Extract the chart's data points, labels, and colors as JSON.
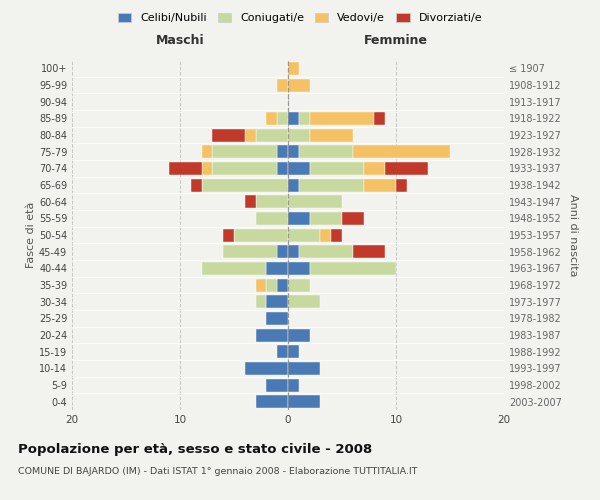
{
  "age_groups": [
    "0-4",
    "5-9",
    "10-14",
    "15-19",
    "20-24",
    "25-29",
    "30-34",
    "35-39",
    "40-44",
    "45-49",
    "50-54",
    "55-59",
    "60-64",
    "65-69",
    "70-74",
    "75-79",
    "80-84",
    "85-89",
    "90-94",
    "95-99",
    "100+"
  ],
  "birth_years": [
    "2003-2007",
    "1998-2002",
    "1993-1997",
    "1988-1992",
    "1983-1987",
    "1978-1982",
    "1973-1977",
    "1968-1972",
    "1963-1967",
    "1958-1962",
    "1953-1957",
    "1948-1952",
    "1943-1947",
    "1938-1942",
    "1933-1937",
    "1928-1932",
    "1923-1927",
    "1918-1922",
    "1913-1917",
    "1908-1912",
    "≤ 1907"
  ],
  "male": {
    "celibi": [
      3,
      2,
      4,
      1,
      3,
      2,
      2,
      1,
      2,
      1,
      0,
      0,
      0,
      0,
      1,
      1,
      0,
      0,
      0,
      0,
      0
    ],
    "coniugati": [
      0,
      0,
      0,
      0,
      0,
      0,
      1,
      1,
      6,
      5,
      5,
      3,
      3,
      8,
      6,
      6,
      3,
      1,
      0,
      0,
      0
    ],
    "vedovi": [
      0,
      0,
      0,
      0,
      0,
      0,
      0,
      1,
      0,
      0,
      0,
      0,
      0,
      0,
      1,
      1,
      1,
      1,
      0,
      1,
      0
    ],
    "divorziati": [
      0,
      0,
      0,
      0,
      0,
      0,
      0,
      0,
      0,
      0,
      1,
      0,
      1,
      1,
      3,
      0,
      3,
      0,
      0,
      0,
      0
    ]
  },
  "female": {
    "nubili": [
      3,
      1,
      3,
      1,
      2,
      0,
      0,
      0,
      2,
      1,
      0,
      2,
      0,
      1,
      2,
      1,
      0,
      1,
      0,
      0,
      0
    ],
    "coniugate": [
      0,
      0,
      0,
      0,
      0,
      0,
      3,
      2,
      8,
      5,
      3,
      3,
      5,
      6,
      5,
      5,
      2,
      1,
      0,
      0,
      0
    ],
    "vedove": [
      0,
      0,
      0,
      0,
      0,
      0,
      0,
      0,
      0,
      0,
      1,
      0,
      0,
      3,
      2,
      9,
      4,
      6,
      0,
      2,
      1
    ],
    "divorziate": [
      0,
      0,
      0,
      0,
      0,
      0,
      0,
      0,
      0,
      3,
      1,
      2,
      0,
      1,
      4,
      0,
      0,
      1,
      0,
      0,
      0
    ]
  },
  "colors": {
    "celibi_nubili": "#4a7ab5",
    "coniugati": "#c8d9a0",
    "vedovi": "#f5c165",
    "divorziati": "#c0392b"
  },
  "xlim": 20,
  "title": "Popolazione per età, sesso e stato civile - 2008",
  "subtitle": "COMUNE DI BAJARDO (IM) - Dati ISTAT 1° gennaio 2008 - Elaborazione TUTTITALIA.IT",
  "ylabel_left": "Fasce di età",
  "ylabel_right": "Anni di nascita",
  "xlabel_left": "Maschi",
  "xlabel_right": "Femmine",
  "bg_color": "#f2f2ee"
}
